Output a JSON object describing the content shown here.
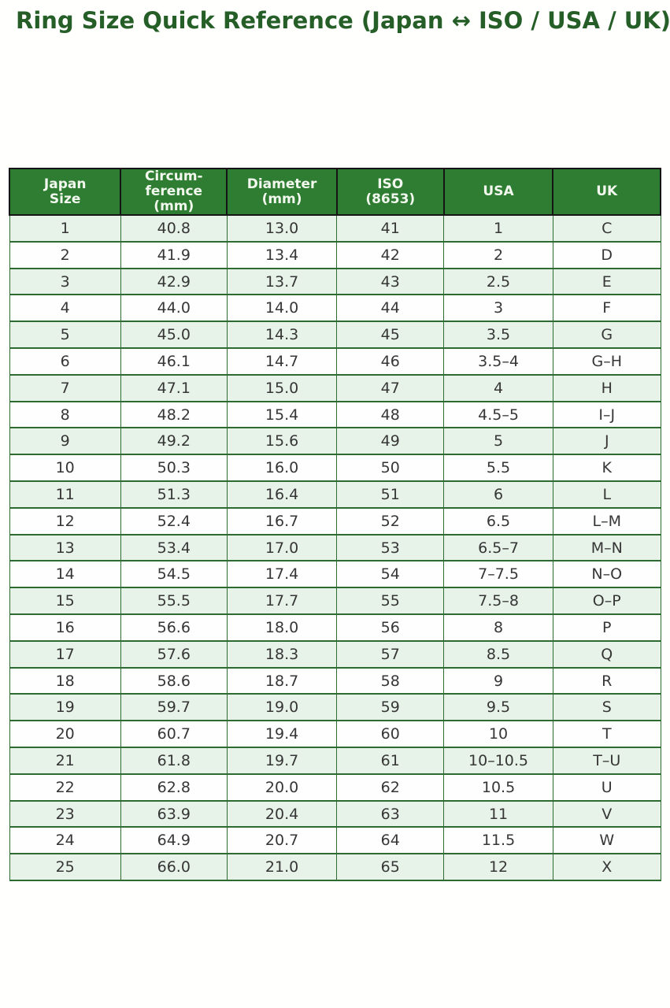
{
  "page": {
    "title": "Ring Size Quick Reference (Japan ↔ ISO / USA / UK)"
  },
  "colors": {
    "title_text": "#265e28",
    "header_bg": "#2e7d32",
    "header_text": "#f2f8ee",
    "header_border": "#151515",
    "body_border": "#2e6b30",
    "row_tint": "#e7f3e8",
    "row_plain": "#fdfefd",
    "page_bg": "#fffffe"
  },
  "chart_data": {
    "type": "table",
    "title": "Ring Size Quick Reference (Japan ↔ ISO / USA / UK)",
    "columns": [
      "Japan\nSize",
      "Circum-\nference\n(mm)",
      "Diameter\n(mm)",
      "ISO\n(8653)",
      "USA",
      "UK"
    ],
    "rows": [
      [
        "1",
        "40.8",
        "13.0",
        "41",
        "1",
        "C"
      ],
      [
        "2",
        "41.9",
        "13.4",
        "42",
        "2",
        "D"
      ],
      [
        "3",
        "42.9",
        "13.7",
        "43",
        "2.5",
        "E"
      ],
      [
        "4",
        "44.0",
        "14.0",
        "44",
        "3",
        "F"
      ],
      [
        "5",
        "45.0",
        "14.3",
        "45",
        "3.5",
        "G"
      ],
      [
        "6",
        "46.1",
        "14.7",
        "46",
        "3.5–4",
        "G–H"
      ],
      [
        "7",
        "47.1",
        "15.0",
        "47",
        "4",
        "H"
      ],
      [
        "8",
        "48.2",
        "15.4",
        "48",
        "4.5–5",
        "I–J"
      ],
      [
        "9",
        "49.2",
        "15.6",
        "49",
        "5",
        "J"
      ],
      [
        "10",
        "50.3",
        "16.0",
        "50",
        "5.5",
        "K"
      ],
      [
        "11",
        "51.3",
        "16.4",
        "51",
        "6",
        "L"
      ],
      [
        "12",
        "52.4",
        "16.7",
        "52",
        "6.5",
        "L–M"
      ],
      [
        "13",
        "53.4",
        "17.0",
        "53",
        "6.5–7",
        "M–N"
      ],
      [
        "14",
        "54.5",
        "17.4",
        "54",
        "7–7.5",
        "N–O"
      ],
      [
        "15",
        "55.5",
        "17.7",
        "55",
        "7.5–8",
        "O–P"
      ],
      [
        "16",
        "56.6",
        "18.0",
        "56",
        "8",
        "P"
      ],
      [
        "17",
        "57.6",
        "18.3",
        "57",
        "8.5",
        "Q"
      ],
      [
        "18",
        "58.6",
        "18.7",
        "58",
        "9",
        "R"
      ],
      [
        "19",
        "59.7",
        "19.0",
        "59",
        "9.5",
        "S"
      ],
      [
        "20",
        "60.7",
        "19.4",
        "60",
        "10",
        "T"
      ],
      [
        "21",
        "61.8",
        "19.7",
        "61",
        "10–10.5",
        "T–U"
      ],
      [
        "22",
        "62.8",
        "20.0",
        "62",
        "10.5",
        "U"
      ],
      [
        "23",
        "63.9",
        "20.4",
        "63",
        "11",
        "V"
      ],
      [
        "24",
        "64.9",
        "20.7",
        "64",
        "11.5",
        "W"
      ],
      [
        "25",
        "66.0",
        "21.0",
        "65",
        "12",
        "X"
      ]
    ]
  }
}
